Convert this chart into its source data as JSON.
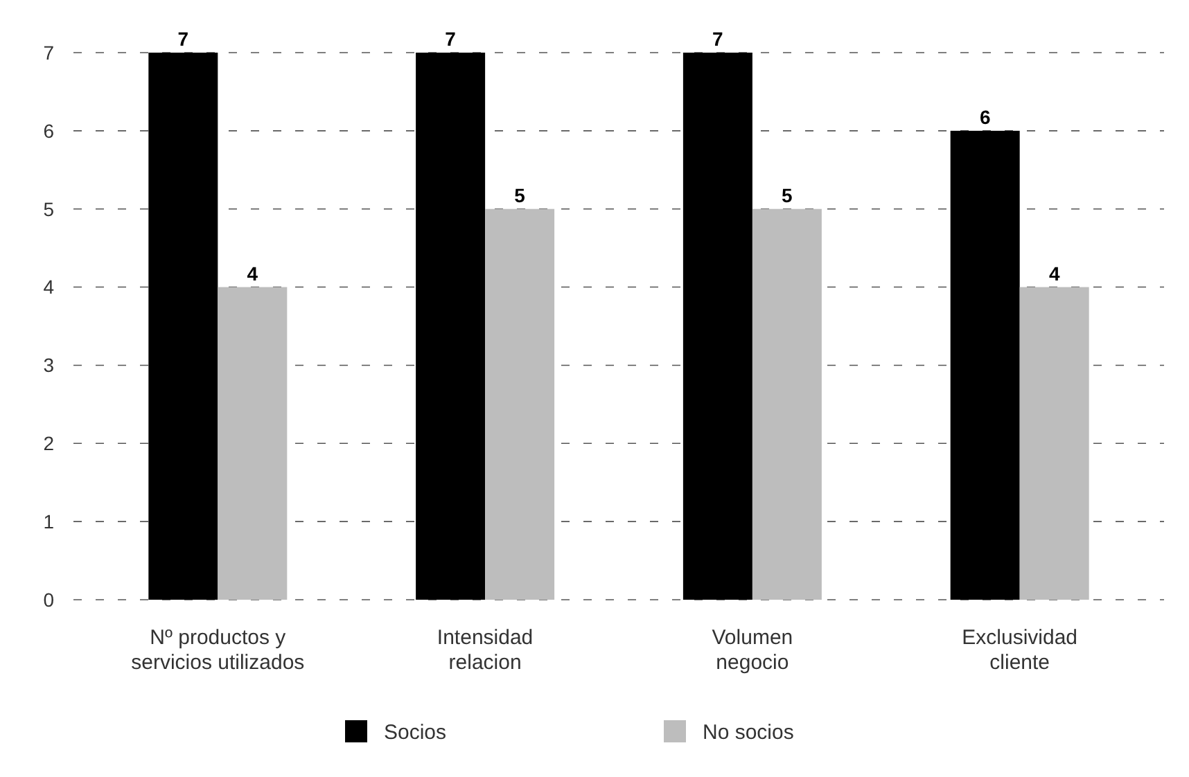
{
  "chart_data": {
    "type": "bar",
    "categories": [
      "Nº productos y\nservicios utilizados",
      "Intensidad\nrelacion",
      "Volumen\nnegocio",
      "Exclusividad\ncliente"
    ],
    "series": [
      {
        "name": "Socios",
        "color": "#000000",
        "values": [
          7,
          7,
          7,
          6
        ]
      },
      {
        "name": "No socios",
        "color": "#bdbdbd",
        "values": [
          4,
          5,
          5,
          4
        ]
      }
    ],
    "ylim": [
      0,
      7
    ],
    "yticks": [
      0,
      1,
      2,
      3,
      4,
      5,
      6,
      7
    ],
    "grid": "y",
    "data_labels": true,
    "legend": "bottom"
  }
}
